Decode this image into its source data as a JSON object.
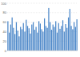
{
  "chart_data": {
    "type": "bar",
    "categories": [
      null,
      null,
      null,
      null,
      null,
      null,
      null,
      null,
      null,
      null,
      null,
      null,
      null,
      null,
      null,
      null,
      null,
      null,
      null,
      null,
      null,
      null,
      null,
      null,
      null,
      null,
      null,
      null,
      null,
      null,
      null,
      null,
      null,
      null,
      null,
      null,
      null,
      null,
      null,
      null,
      null,
      null,
      null,
      null,
      null,
      null,
      null,
      null,
      null,
      null
    ],
    "values": [
      62,
      38,
      55,
      70,
      48,
      35,
      60,
      42,
      30,
      50,
      45,
      58,
      40,
      65,
      52,
      47,
      36,
      55,
      60,
      44,
      50,
      38,
      62,
      57,
      45,
      40,
      68,
      52,
      48,
      90,
      60,
      44,
      55,
      50,
      62,
      38,
      58,
      46,
      52,
      64,
      40,
      56,
      48,
      70,
      88,
      52,
      45,
      60,
      50,
      66
    ],
    "color": "#4a86c8",
    "ylim": [
      0,
      100
    ],
    "yticks": [
      0,
      20,
      40,
      60,
      80,
      100
    ],
    "grid": true
  }
}
